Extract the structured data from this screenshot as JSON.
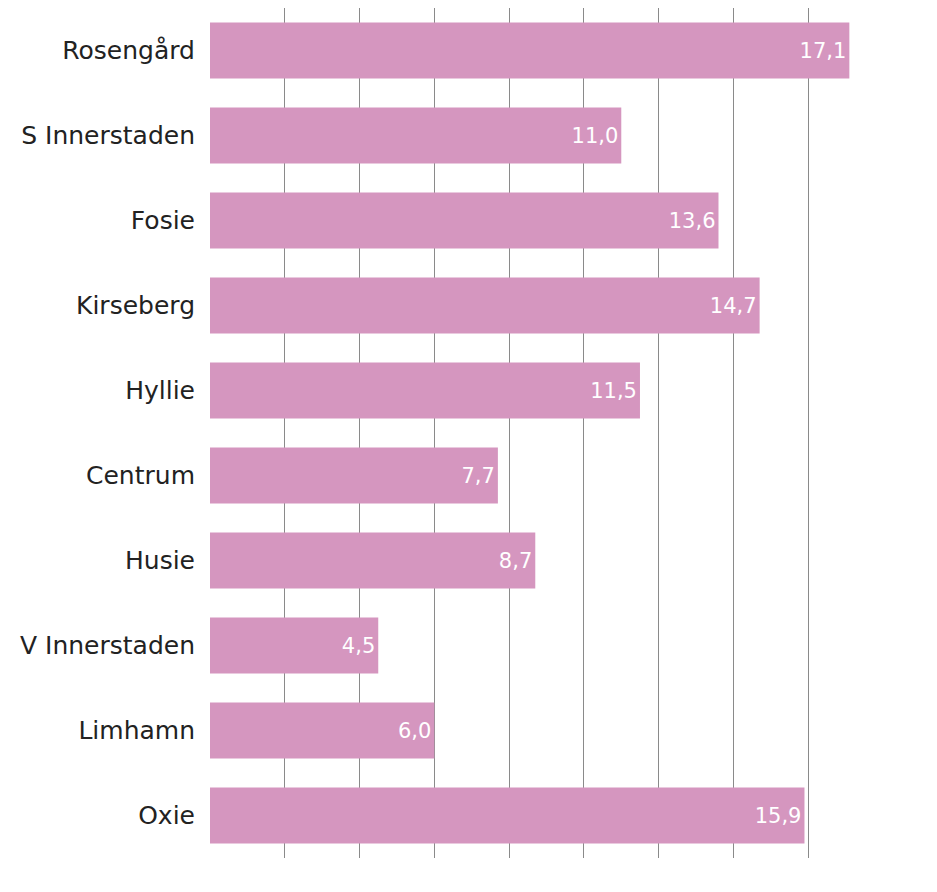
{
  "chart_data": {
    "type": "bar",
    "orientation": "horizontal",
    "categories": [
      "Rosengård",
      "S Innerstaden",
      "Fosie",
      "Kirseberg",
      "Hyllie",
      "Centrum",
      "Husie",
      "V Innerstaden",
      "Limhamn",
      "Oxie"
    ],
    "values": [
      17.1,
      11.0,
      13.6,
      14.7,
      11.5,
      7.7,
      8.7,
      4.5,
      6.0,
      15.9
    ],
    "value_labels": [
      "17,1",
      "11,0",
      "13,6",
      "14,7",
      "11,5",
      "7,7",
      "8,7",
      "4,5",
      "6,0",
      "15,9"
    ],
    "color": "#d596bf",
    "xlim": [
      0,
      18
    ],
    "xticks": [
      0,
      2,
      4,
      6,
      8,
      10,
      12,
      14,
      16,
      18
    ],
    "grid": true,
    "data_labels": true,
    "tick_labels": "y"
  }
}
